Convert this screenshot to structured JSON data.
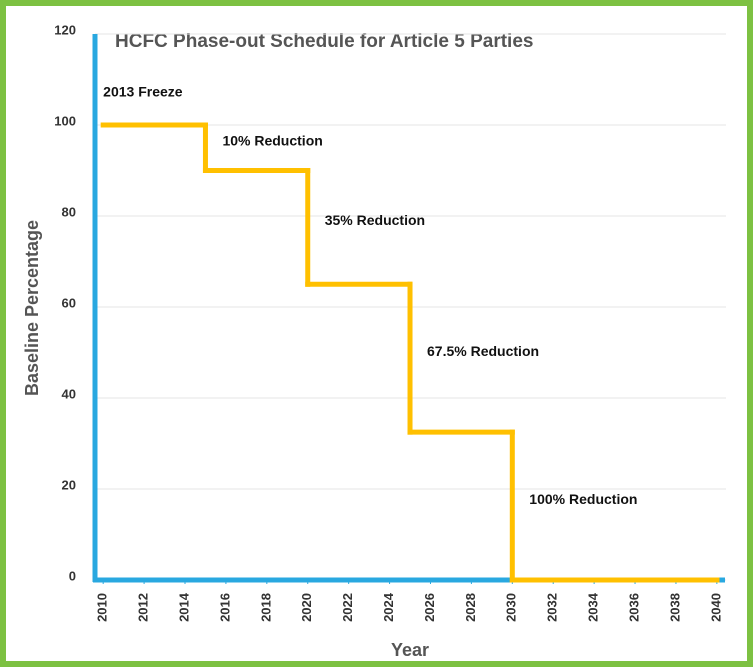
{
  "chart_data": {
    "type": "line",
    "step": "post",
    "title": "HCFC Phase-out Schedule for Article 5 Parties",
    "xlabel": "Year",
    "ylabel": "Baseline Percentage",
    "x": [
      2010,
      2015,
      2020,
      2025,
      2030,
      2040
    ],
    "values": [
      100,
      90,
      65,
      32.5,
      0,
      0
    ],
    "color": "#ffc000",
    "annotations": [
      "2013 Freeze",
      "10% Reduction",
      "35% Reduction",
      "67.5% Reduction",
      "100% Reduction"
    ],
    "xlim": [
      2009.6,
      2040.3
    ],
    "xticks": [
      2010,
      2012,
      2014,
      2016,
      2018,
      2020,
      2022,
      2024,
      2026,
      2028,
      2030,
      2032,
      2034,
      2036,
      2038,
      2040
    ],
    "ylim": [
      0,
      120
    ],
    "yticks": [
      0,
      20,
      40,
      60,
      80,
      100,
      120
    ],
    "grid": true
  }
}
